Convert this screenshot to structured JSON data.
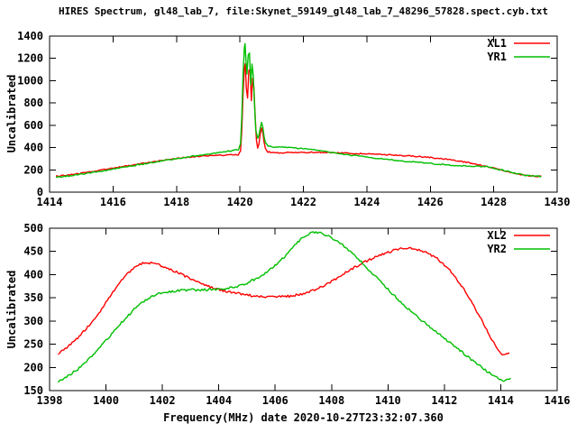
{
  "title": "HIRES Spectrum, gl48_lab_7, file:Skynet_59149_gl48_lab_7_48296_57828.spect.cyb.txt",
  "colors": {
    "background": "#ffffff",
    "axis": "#000000",
    "text": "#000000",
    "xl_red": "#ff0000",
    "yr_green": "#00bf00"
  },
  "chart_data": [
    {
      "type": "line",
      "title": "",
      "ylabel": "Uncalibrated",
      "xlabel": "",
      "xlim": [
        1414,
        1430
      ],
      "ylim": [
        0,
        1400
      ],
      "x_ticks": [
        1414,
        1416,
        1418,
        1420,
        1422,
        1424,
        1426,
        1428,
        1430
      ],
      "y_ticks": [
        0,
        200,
        400,
        600,
        800,
        1000,
        1200,
        1400
      ],
      "grid": false,
      "legend_position": "top-right",
      "noise": 5,
      "series": [
        {
          "name": "XL1",
          "color": "#ff0000",
          "points": [
            [
              1414.2,
              142
            ],
            [
              1414.6,
              155
            ],
            [
              1415.0,
              170
            ],
            [
              1415.5,
              192
            ],
            [
              1416.0,
              215
            ],
            [
              1416.5,
              238
            ],
            [
              1417.0,
              261
            ],
            [
              1417.5,
              283
            ],
            [
              1418.0,
              302
            ],
            [
              1418.4,
              315
            ],
            [
              1418.8,
              324
            ],
            [
              1419.2,
              330
            ],
            [
              1419.6,
              334
            ],
            [
              1419.95,
              337
            ],
            [
              1420.02,
              370
            ],
            [
              1420.06,
              560
            ],
            [
              1420.1,
              880
            ],
            [
              1420.14,
              1120
            ],
            [
              1420.17,
              1150
            ],
            [
              1420.2,
              930
            ],
            [
              1420.24,
              840
            ],
            [
              1420.28,
              1090
            ],
            [
              1420.32,
              1100
            ],
            [
              1420.36,
              820
            ],
            [
              1420.4,
              1020
            ],
            [
              1420.44,
              940
            ],
            [
              1420.48,
              690
            ],
            [
              1420.52,
              470
            ],
            [
              1420.56,
              400
            ],
            [
              1420.6,
              430
            ],
            [
              1420.64,
              520
            ],
            [
              1420.68,
              580
            ],
            [
              1420.72,
              540
            ],
            [
              1420.76,
              450
            ],
            [
              1420.8,
              392
            ],
            [
              1420.88,
              362
            ],
            [
              1421.0,
              355
            ],
            [
              1421.4,
              353
            ],
            [
              1421.8,
              354
            ],
            [
              1422.2,
              358
            ],
            [
              1422.6,
              356
            ],
            [
              1423.0,
              352
            ],
            [
              1423.4,
              349
            ],
            [
              1423.8,
              345
            ],
            [
              1424.2,
              341
            ],
            [
              1424.6,
              336
            ],
            [
              1425.0,
              330
            ],
            [
              1425.4,
              324
            ],
            [
              1425.8,
              316
            ],
            [
              1426.2,
              305
            ],
            [
              1426.6,
              292
            ],
            [
              1427.0,
              275
            ],
            [
              1427.4,
              254
            ],
            [
              1427.8,
              230
            ],
            [
              1428.2,
              202
            ],
            [
              1428.6,
              174
            ],
            [
              1429.0,
              150
            ],
            [
              1429.3,
              143
            ],
            [
              1429.5,
              142
            ]
          ]
        },
        {
          "name": "YR1",
          "color": "#00bf00",
          "points": [
            [
              1414.2,
              134
            ],
            [
              1414.6,
              146
            ],
            [
              1415.0,
              161
            ],
            [
              1415.5,
              183
            ],
            [
              1416.0,
              207
            ],
            [
              1416.5,
              231
            ],
            [
              1417.0,
              255
            ],
            [
              1417.5,
              278
            ],
            [
              1418.0,
              300
            ],
            [
              1418.4,
              318
            ],
            [
              1418.8,
              335
            ],
            [
              1419.2,
              351
            ],
            [
              1419.6,
              366
            ],
            [
              1419.95,
              382
            ],
            [
              1420.02,
              430
            ],
            [
              1420.06,
              680
            ],
            [
              1420.1,
              1060
            ],
            [
              1420.14,
              1300
            ],
            [
              1420.16,
              1330
            ],
            [
              1420.19,
              1180
            ],
            [
              1420.22,
              1060
            ],
            [
              1420.26,
              1230
            ],
            [
              1420.3,
              1250
            ],
            [
              1420.34,
              960
            ],
            [
              1420.38,
              1150
            ],
            [
              1420.42,
              1050
            ],
            [
              1420.46,
              780
            ],
            [
              1420.5,
              560
            ],
            [
              1420.56,
              485
            ],
            [
              1420.6,
              505
            ],
            [
              1420.64,
              575
            ],
            [
              1420.68,
              630
            ],
            [
              1420.72,
              585
            ],
            [
              1420.76,
              500
            ],
            [
              1420.8,
              445
            ],
            [
              1420.88,
              418
            ],
            [
              1421.0,
              408
            ],
            [
              1421.4,
              402
            ],
            [
              1421.8,
              396
            ],
            [
              1422.2,
              384
            ],
            [
              1422.6,
              368
            ],
            [
              1423.0,
              352
            ],
            [
              1423.4,
              336
            ],
            [
              1423.8,
              321
            ],
            [
              1424.2,
              307
            ],
            [
              1424.6,
              295
            ],
            [
              1425.0,
              283
            ],
            [
              1425.4,
              272
            ],
            [
              1425.8,
              262
            ],
            [
              1426.2,
              252
            ],
            [
              1426.6,
              244
            ],
            [
              1427.0,
              237
            ],
            [
              1427.4,
              232
            ],
            [
              1427.8,
              228
            ],
            [
              1428.2,
              202
            ],
            [
              1428.6,
              174
            ],
            [
              1429.0,
              150
            ],
            [
              1429.3,
              143
            ],
            [
              1429.5,
              142
            ]
          ]
        }
      ]
    },
    {
      "type": "line",
      "title": "",
      "ylabel": "Uncalibrated",
      "xlabel": "Frequency(MHz) date 2020-10-27T23:32:07.360",
      "xlim": [
        1398,
        1416
      ],
      "ylim": [
        150,
        500
      ],
      "x_ticks": [
        1398,
        1400,
        1402,
        1404,
        1406,
        1408,
        1410,
        1412,
        1414,
        1416
      ],
      "y_ticks": [
        150,
        200,
        250,
        300,
        350,
        400,
        450,
        500
      ],
      "grid": false,
      "legend_position": "top-right",
      "noise": 2.5,
      "series": [
        {
          "name": "XL2",
          "color": "#ff0000",
          "points": [
            [
              1398.3,
              228
            ],
            [
              1398.6,
              242
            ],
            [
              1399.0,
              264
            ],
            [
              1399.4,
              291
            ],
            [
              1399.8,
              322
            ],
            [
              1400.2,
              358
            ],
            [
              1400.6,
              392
            ],
            [
              1401.0,
              416
            ],
            [
              1401.3,
              424
            ],
            [
              1401.6,
              425
            ],
            [
              1401.9,
              421
            ],
            [
              1402.2,
              414
            ],
            [
              1402.6,
              403
            ],
            [
              1403.0,
              391
            ],
            [
              1403.4,
              380
            ],
            [
              1403.8,
              371
            ],
            [
              1404.2,
              365
            ],
            [
              1404.6,
              360
            ],
            [
              1405.0,
              356
            ],
            [
              1405.4,
              353
            ],
            [
              1405.8,
              352
            ],
            [
              1406.2,
              352
            ],
            [
              1406.6,
              354
            ],
            [
              1407.0,
              359
            ],
            [
              1407.4,
              367
            ],
            [
              1407.8,
              379
            ],
            [
              1408.2,
              393
            ],
            [
              1408.6,
              408
            ],
            [
              1409.0,
              422
            ],
            [
              1409.4,
              434
            ],
            [
              1409.8,
              444
            ],
            [
              1410.2,
              452
            ],
            [
              1410.6,
              457
            ],
            [
              1411.0,
              455
            ],
            [
              1411.4,
              447
            ],
            [
              1411.8,
              432
            ],
            [
              1412.2,
              409
            ],
            [
              1412.6,
              377
            ],
            [
              1413.0,
              337
            ],
            [
              1413.4,
              293
            ],
            [
              1413.7,
              258
            ],
            [
              1413.9,
              237
            ],
            [
              1414.1,
              227
            ],
            [
              1414.3,
              232
            ]
          ]
        },
        {
          "name": "YR2",
          "color": "#00bf00",
          "points": [
            [
              1398.3,
              170
            ],
            [
              1398.6,
              180
            ],
            [
              1399.0,
              196
            ],
            [
              1399.4,
              218
            ],
            [
              1399.8,
              244
            ],
            [
              1400.2,
              272
            ],
            [
              1400.6,
              300
            ],
            [
              1401.0,
              325
            ],
            [
              1401.4,
              345
            ],
            [
              1401.8,
              357
            ],
            [
              1402.2,
              363
            ],
            [
              1402.6,
              366
            ],
            [
              1403.0,
              367
            ],
            [
              1403.4,
              367
            ],
            [
              1403.8,
              368
            ],
            [
              1404.2,
              370
            ],
            [
              1404.6,
              374
            ],
            [
              1405.0,
              382
            ],
            [
              1405.4,
              394
            ],
            [
              1405.8,
              410
            ],
            [
              1406.2,
              430
            ],
            [
              1406.5,
              450
            ],
            [
              1406.8,
              470
            ],
            [
              1407.0,
              482
            ],
            [
              1407.3,
              491
            ],
            [
              1407.6,
              490
            ],
            [
              1407.9,
              483
            ],
            [
              1408.2,
              472
            ],
            [
              1408.5,
              458
            ],
            [
              1408.9,
              437
            ],
            [
              1409.3,
              412
            ],
            [
              1409.7,
              387
            ],
            [
              1410.1,
              362
            ],
            [
              1410.5,
              338
            ],
            [
              1410.9,
              316
            ],
            [
              1411.3,
              296
            ],
            [
              1411.7,
              277
            ],
            [
              1412.1,
              258
            ],
            [
              1412.5,
              239
            ],
            [
              1412.9,
              220
            ],
            [
              1413.3,
              201
            ],
            [
              1413.6,
              188
            ],
            [
              1413.9,
              176
            ],
            [
              1414.1,
              171
            ],
            [
              1414.35,
              177
            ]
          ]
        }
      ]
    }
  ]
}
